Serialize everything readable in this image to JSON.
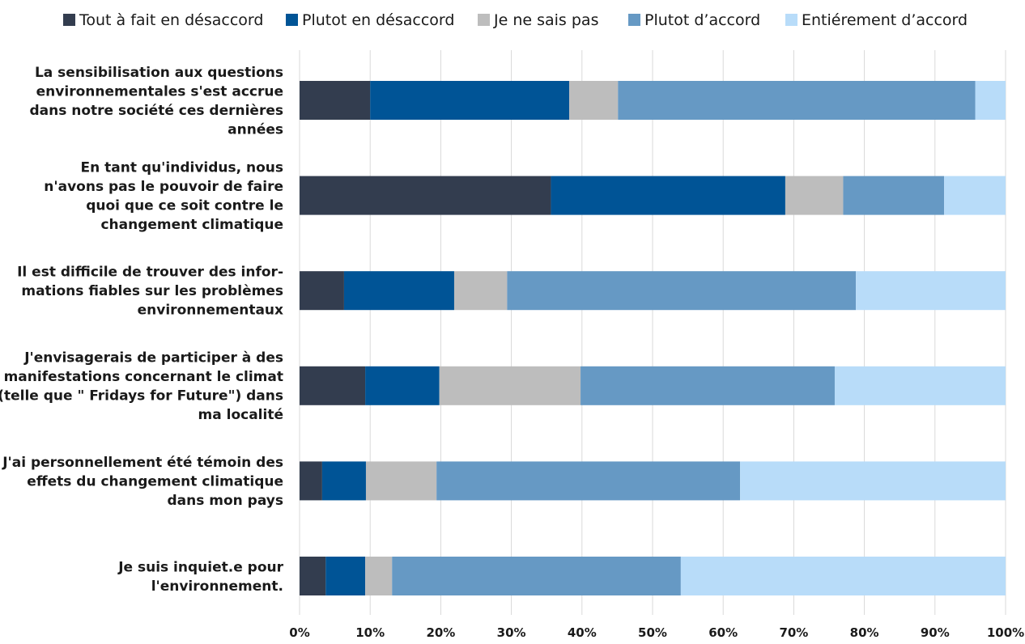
{
  "chart_data": {
    "type": "bar",
    "orientation": "horizontal",
    "stacked": true,
    "percent_axis": true,
    "title": "",
    "xlabel": "",
    "ylabel": "",
    "xlim": [
      0,
      100
    ],
    "grid": true,
    "legend_position": "top",
    "x_ticks": [
      "0%",
      "10%",
      "20%",
      "30%",
      "40%",
      "50%",
      "60%",
      "70%",
      "80%",
      "90%",
      "100%"
    ],
    "categories": [
      [
        "La sensibilisation aux questions",
        "environnementales s'est accrue",
        "dans notre société ces dernières",
        "années"
      ],
      [
        "En tant qu'individus, nous",
        "n'avons pas le pouvoir de faire",
        "quoi que ce soit contre le",
        "changement climatique"
      ],
      [
        "Il est difficile de trouver des infor-",
        "mations fiables sur les problèmes",
        "environnementaux"
      ],
      [
        "J'envisagerais de participer à des",
        "manifestations concernant le climat",
        "(telle que \" Fridays for Future\") dans",
        "ma localité"
      ],
      [
        "J'ai personnellement été témoin des",
        "effets du changement climatique",
        "dans mon pays"
      ],
      [
        "Je suis inquiet.e pour",
        "l'environnement."
      ]
    ],
    "series": [
      {
        "name": "Tout à fait en désaccord",
        "color": "#333d4f",
        "values": [
          10.0,
          35.6,
          6.3,
          9.3,
          3.2,
          3.7
        ]
      },
      {
        "name": "Plutot en désaccord",
        "color": "#005496",
        "values": [
          28.2,
          33.2,
          15.6,
          10.5,
          6.2,
          5.6
        ]
      },
      {
        "name": "Je ne sais pas",
        "color": "#bdbdbd",
        "values": [
          6.9,
          8.2,
          7.5,
          20.0,
          10.0,
          3.8
        ]
      },
      {
        "name": "Plutot d’accord",
        "color": "#6699c4",
        "values": [
          50.6,
          14.3,
          49.4,
          36.0,
          43.0,
          40.9
        ]
      },
      {
        "name": "Entiérement d’accord",
        "color": "#b8dcf9",
        "values": [
          4.3,
          8.7,
          21.2,
          24.2,
          37.6,
          46.0
        ]
      }
    ]
  }
}
